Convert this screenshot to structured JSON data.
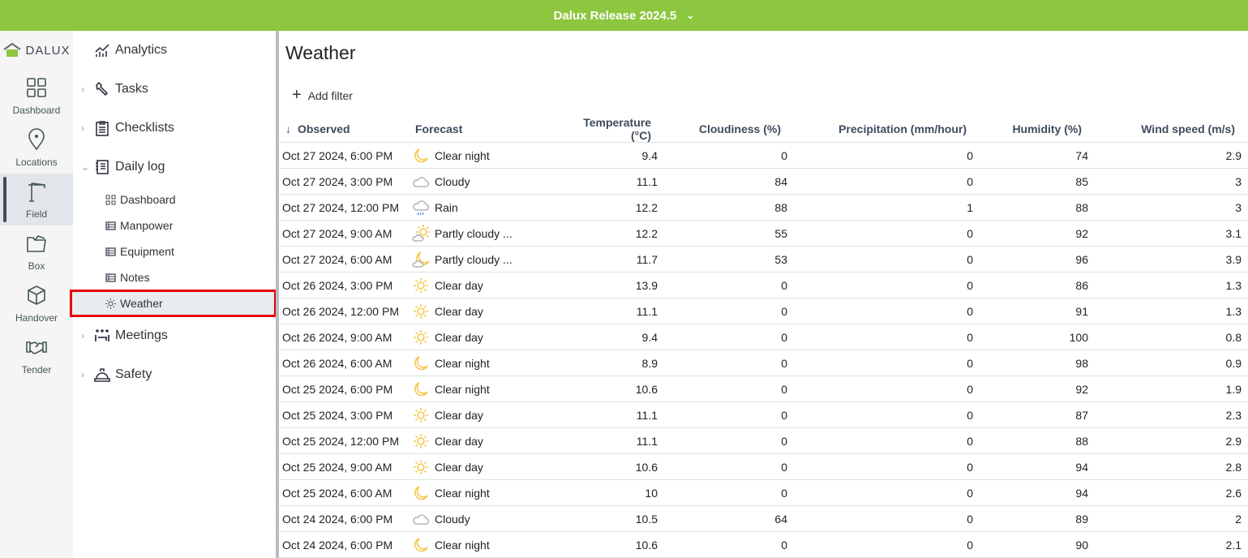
{
  "topbar": {
    "title": "Dalux Release 2024.5"
  },
  "logo": "DALUX",
  "rail": [
    {
      "label": "Dashboard",
      "icon": "grid-icon"
    },
    {
      "label": "Locations",
      "icon": "pin-icon"
    },
    {
      "label": "Field",
      "icon": "crane-icon",
      "active": true
    },
    {
      "label": "Box",
      "icon": "folder-icon"
    },
    {
      "label": "Handover",
      "icon": "box-icon"
    },
    {
      "label": "Tender",
      "icon": "handshake-icon"
    }
  ],
  "nav": {
    "analytics": "Analytics",
    "tasks": "Tasks",
    "checklists": "Checklists",
    "daily_log": "Daily log",
    "sub": [
      "Dashboard",
      "Manpower",
      "Equipment",
      "Notes",
      "Weather"
    ],
    "meetings": "Meetings",
    "safety": "Safety"
  },
  "main": {
    "title": "Weather",
    "add_filter": "Add filter",
    "columns": [
      "Observed",
      "Forecast",
      "Temperature (°C)",
      "Cloudiness (%)",
      "Precipitation (mm/hour)",
      "Humidity (%)",
      "Wind speed (m/s)"
    ],
    "rows": [
      [
        "Oct 27 2024, 6:00 PM",
        "night",
        "Clear night",
        "9.4",
        "0",
        "0",
        "74",
        "2.9"
      ],
      [
        "Oct 27 2024, 3:00 PM",
        "cloud",
        "Cloudy",
        "11.1",
        "84",
        "0",
        "85",
        "3"
      ],
      [
        "Oct 27 2024, 12:00 PM",
        "rain",
        "Rain",
        "12.2",
        "88",
        "1",
        "88",
        "3"
      ],
      [
        "Oct 27 2024, 9:00 AM",
        "pcday",
        "Partly cloudy ...",
        "12.2",
        "55",
        "0",
        "92",
        "3.1"
      ],
      [
        "Oct 27 2024, 6:00 AM",
        "pcnight",
        "Partly cloudy ...",
        "11.7",
        "53",
        "0",
        "96",
        "3.9"
      ],
      [
        "Oct 26 2024, 3:00 PM",
        "sun",
        "Clear day",
        "13.9",
        "0",
        "0",
        "86",
        "1.3"
      ],
      [
        "Oct 26 2024, 12:00 PM",
        "sun",
        "Clear day",
        "11.1",
        "0",
        "0",
        "91",
        "1.3"
      ],
      [
        "Oct 26 2024, 9:00 AM",
        "sun",
        "Clear day",
        "9.4",
        "0",
        "0",
        "100",
        "0.8"
      ],
      [
        "Oct 26 2024, 6:00 AM",
        "night",
        "Clear night",
        "8.9",
        "0",
        "0",
        "98",
        "0.9"
      ],
      [
        "Oct 25 2024, 6:00 PM",
        "night",
        "Clear night",
        "10.6",
        "0",
        "0",
        "92",
        "1.9"
      ],
      [
        "Oct 25 2024, 3:00 PM",
        "sun",
        "Clear day",
        "11.1",
        "0",
        "0",
        "87",
        "2.3"
      ],
      [
        "Oct 25 2024, 12:00 PM",
        "sun",
        "Clear day",
        "11.1",
        "0",
        "0",
        "88",
        "2.9"
      ],
      [
        "Oct 25 2024, 9:00 AM",
        "sun",
        "Clear day",
        "10.6",
        "0",
        "0",
        "94",
        "2.8"
      ],
      [
        "Oct 25 2024, 6:00 AM",
        "night",
        "Clear night",
        "10",
        "0",
        "0",
        "94",
        "2.6"
      ],
      [
        "Oct 24 2024, 6:00 PM",
        "cloud",
        "Cloudy",
        "10.5",
        "64",
        "0",
        "89",
        "2"
      ],
      [
        "Oct 24 2024, 6:00 PM",
        "night",
        "Clear night",
        "10.6",
        "0",
        "0",
        "90",
        "2.1"
      ]
    ]
  },
  "colors": {
    "brand": "#8dc63f",
    "sun": "#f5c84c",
    "cloud": "#b0b6bd",
    "rain": "#6a9ee8",
    "highlight": "#e8000b"
  }
}
